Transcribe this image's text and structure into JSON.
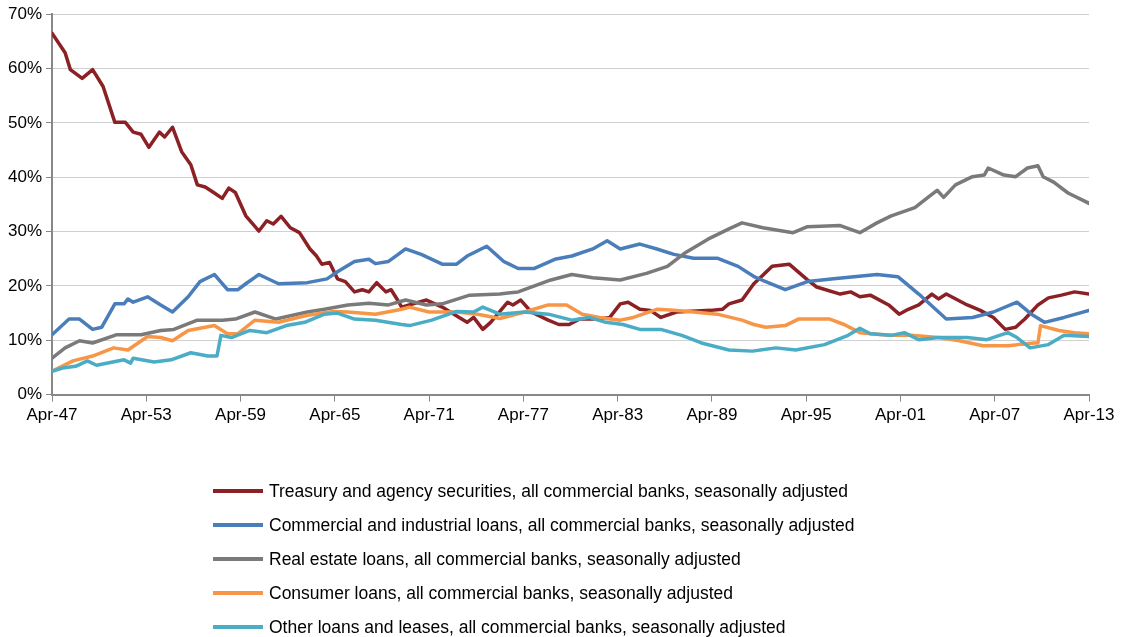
{
  "chart_data": {
    "type": "line",
    "xlim": [
      "1947-04",
      "2013-04"
    ],
    "xticks": [
      {
        "value": "1947-04",
        "label": "Apr-47"
      },
      {
        "value": "1953-04",
        "label": "Apr-53"
      },
      {
        "value": "1959-04",
        "label": "Apr-59"
      },
      {
        "value": "1965-04",
        "label": "Apr-65"
      },
      {
        "value": "1971-04",
        "label": "Apr-71"
      },
      {
        "value": "1977-04",
        "label": "Apr-77"
      },
      {
        "value": "1983-04",
        "label": "Apr-83"
      },
      {
        "value": "1989-04",
        "label": "Apr-89"
      },
      {
        "value": "1995-04",
        "label": "Apr-95"
      },
      {
        "value": "2001-04",
        "label": "Apr-01"
      },
      {
        "value": "2007-04",
        "label": "Apr-07"
      },
      {
        "value": "2013-04",
        "label": "Apr-13"
      }
    ],
    "ylim": [
      0,
      70
    ],
    "yticks": [
      {
        "value": 0,
        "label": "0%"
      },
      {
        "value": 10,
        "label": "10%"
      },
      {
        "value": 20,
        "label": "20%"
      },
      {
        "value": 30,
        "label": "30%"
      },
      {
        "value": 40,
        "label": "40%"
      },
      {
        "value": 50,
        "label": "50%"
      },
      {
        "value": 60,
        "label": "60%"
      },
      {
        "value": 70,
        "label": "70%"
      }
    ],
    "grid": "y",
    "legend": "bottom",
    "line_style": "solid",
    "series": [
      {
        "name": "Treasury and agency securities, all commercial banks, seasonally adjusted",
        "color": "#8b2125",
        "x": [
          "1947-04",
          "1948-02",
          "1948-06",
          "1949-03",
          "1949-11",
          "1950-07",
          "1951-04",
          "1951-12",
          "1952-06",
          "1952-12",
          "1953-06",
          "1954-02",
          "1954-06",
          "1954-12",
          "1955-07",
          "1956-02",
          "1956-07",
          "1957-01",
          "1957-08",
          "1958-02",
          "1958-07",
          "1958-12",
          "1959-08",
          "1960-06",
          "1960-12",
          "1961-05",
          "1961-11",
          "1962-06",
          "1963-01",
          "1963-09",
          "1964-02",
          "1964-06",
          "1964-12",
          "1965-06",
          "1965-12",
          "1966-07",
          "1967-01",
          "1967-06",
          "1967-12",
          "1968-07",
          "1968-11",
          "1969-05",
          "1969-07",
          "1971-02",
          "1972-02",
          "1973-03",
          "1973-09",
          "1974-02",
          "1974-09",
          "1975-03",
          "1976-04",
          "1976-08",
          "1977-02",
          "1977-10",
          "1978-11",
          "1979-07",
          "1980-03",
          "1980-11",
          "1982-02",
          "1982-10",
          "1983-06",
          "1983-12",
          "1984-09",
          "1985-05",
          "1986-01",
          "1987-01",
          "1989-03",
          "1989-12",
          "1990-05",
          "1991-03",
          "1991-12",
          "1993-02",
          "1994-03",
          "1995-05",
          "1995-12",
          "1997-06",
          "1998-02",
          "1998-09",
          "1999-05",
          "2000-07",
          "2001-03",
          "2001-10",
          "2002-06",
          "2003-04",
          "2003-09",
          "2004-03",
          "2005-07",
          "2006-05",
          "2007-03",
          "2007-12",
          "2008-08",
          "2009-03",
          "2010-01",
          "2010-09",
          "2011-07",
          "2012-05",
          "2013-04"
        ],
        "values": [
          66.5,
          62.9,
          59.8,
          58.2,
          59.8,
          56.7,
          50.1,
          50.1,
          48.3,
          47.9,
          45.5,
          48.3,
          47.4,
          49.2,
          44.7,
          42.3,
          38.6,
          38.2,
          37.1,
          36.1,
          38,
          37.2,
          32.9,
          30.1,
          32,
          31.4,
          32.8,
          30.7,
          29.8,
          26.8,
          25.5,
          24,
          24.3,
          21.3,
          20.8,
          18.9,
          19.3,
          18.9,
          20.6,
          18.9,
          19.3,
          17,
          16.1,
          17.4,
          16.1,
          14.2,
          13.3,
          14.2,
          12,
          13.3,
          17,
          16.5,
          17.4,
          15.2,
          13.7,
          12.9,
          12.9,
          13.9,
          13.9,
          14.2,
          16.7,
          17,
          15.7,
          15.5,
          14.2,
          15.2,
          15.5,
          15.7,
          16.7,
          17.4,
          20.4,
          23.6,
          24,
          21.1,
          19.8,
          18.5,
          18.9,
          18,
          18.3,
          16.5,
          14.8,
          15.7,
          16.5,
          18.5,
          17.6,
          18.5,
          16.5,
          15.5,
          14.2,
          12,
          12.4,
          13.9,
          16.5,
          17.8,
          18.3,
          18.9,
          18.5
        ]
      },
      {
        "name": "Commercial and industrial loans, all commercial banks, seasonally adjusted",
        "color": "#4a7ebb",
        "x": [
          "1947-04",
          "1948-05",
          "1949-01",
          "1949-11",
          "1950-06",
          "1951-04",
          "1951-11",
          "1952-02",
          "1952-06",
          "1953-05",
          "1954-03",
          "1954-12",
          "1955-12",
          "1956-09",
          "1957-08",
          "1958-06",
          "1959-02",
          "1959-08",
          "1960-06",
          "1961-09",
          "1963-07",
          "1964-10",
          "1965-06",
          "1966-07",
          "1967-06",
          "1967-11",
          "1968-09",
          "1969-10",
          "1970-10",
          "1972-02",
          "1973-01",
          "1973-09",
          "1974-12",
          "1976-01",
          "1976-12",
          "1977-12",
          "1979-04",
          "1980-05",
          "1981-09",
          "1982-08",
          "1983-06",
          "1984-09",
          "1985-10",
          "1986-11",
          "1988-02",
          "1989-08",
          "1990-12",
          "1992-01",
          "1993-12",
          "1995-05",
          "1997-01",
          "1999-10",
          "2001-02",
          "2002-06",
          "2004-03",
          "2005-11",
          "2007-03",
          "2008-09",
          "2009-08",
          "2010-06",
          "2011-09",
          "2013-04"
        ],
        "values": [
          11,
          13.9,
          13.9,
          12,
          12.4,
          16.7,
          16.7,
          17.6,
          17,
          18,
          16.5,
          15.2,
          18,
          20.8,
          22.1,
          19.3,
          19.3,
          20.4,
          22.1,
          20.4,
          20.6,
          21.3,
          22.6,
          24.5,
          24.9,
          24.1,
          24.5,
          26.8,
          25.8,
          24,
          24,
          25.5,
          27.3,
          24.5,
          23.2,
          23.2,
          24.9,
          25.5,
          26.8,
          28.3,
          26.8,
          27.7,
          26.8,
          25.8,
          25.1,
          25.1,
          23.6,
          21.6,
          19.3,
          20.8,
          21.3,
          22.1,
          21.7,
          18.5,
          13.9,
          14.2,
          15.2,
          17,
          14.8,
          13.3,
          14.2,
          15.5
        ]
      },
      {
        "name": "Real estate loans, all commercial banks, seasonally adjusted",
        "color": "#7a7a7a",
        "x": [
          "1947-04",
          "1948-02",
          "1949-01",
          "1949-11",
          "1951-05",
          "1952-12",
          "1954-03",
          "1955-01",
          "1956-07",
          "1958-02",
          "1958-12",
          "1960-03",
          "1961-07",
          "1963-07",
          "1964-08",
          "1966-02",
          "1967-06",
          "1968-09",
          "1969-10",
          "1971-02",
          "1972-02",
          "1973-11",
          "1975-10",
          "1976-12",
          "1979-01",
          "1980-05",
          "1981-09",
          "1983-06",
          "1985-02",
          "1986-06",
          "1987-07",
          "1989-01",
          "1990-05",
          "1991-03",
          "1992-07",
          "1994-06",
          "1995-05",
          "1997-06",
          "1998-09",
          "1999-10",
          "2000-09",
          "2002-03",
          "2003-01",
          "2003-08",
          "2004-01",
          "2004-10",
          "2005-11",
          "2006-08",
          "2006-11",
          "2007-11",
          "2008-08",
          "2009-05",
          "2010-01",
          "2010-05",
          "2011-01",
          "2011-12",
          "2013-04"
        ],
        "values": [
          6.7,
          8.6,
          9.9,
          9.5,
          11,
          11,
          11.8,
          12,
          13.7,
          13.7,
          13.9,
          15.2,
          13.9,
          15.2,
          15.7,
          16.5,
          16.8,
          16.5,
          17.4,
          16.5,
          16.7,
          18.3,
          18.5,
          18.9,
          21.1,
          22.1,
          21.5,
          21.1,
          22.3,
          23.6,
          26,
          28.6,
          30.5,
          31.6,
          30.7,
          29.8,
          30.9,
          31.1,
          29.8,
          31.6,
          32.9,
          34.4,
          36.3,
          37.6,
          36.3,
          38.6,
          40.1,
          40.4,
          41.7,
          40.4,
          40.1,
          41.7,
          42.1,
          40.1,
          39.1,
          37.1,
          35.2
        ]
      },
      {
        "name": "Consumer loans, all commercial banks, seasonally adjusted",
        "color": "#f79646",
        "x": [
          "1947-04",
          "1948-08",
          "1949-11",
          "1951-03",
          "1952-02",
          "1953-05",
          "1954-03",
          "1954-12",
          "1955-12",
          "1957-08",
          "1958-06",
          "1959-02",
          "1960-03",
          "1961-09",
          "1963-07",
          "1965-03",
          "1966-02",
          "1967-11",
          "1969-07",
          "1970-01",
          "1971-04",
          "1973-01",
          "1974-05",
          "1975-10",
          "1977-05",
          "1978-11",
          "1980-01",
          "1981-01",
          "1982-02",
          "1983-06",
          "1984-04",
          "1985-10",
          "1986-11",
          "1988-02",
          "1989-08",
          "1991-03",
          "1991-12",
          "1992-09",
          "1993-12",
          "1994-10",
          "1996-10",
          "1997-09",
          "1998-09",
          "2000-07",
          "2001-12",
          "2003-09",
          "2005-01",
          "2006-07",
          "2008-02",
          "2009-10",
          "2010-01",
          "2010-03",
          "2011-05",
          "2012-05",
          "2013-04"
        ],
        "values": [
          4.3,
          6.2,
          7.1,
          8.6,
          8.2,
          10.7,
          10.5,
          9.9,
          11.8,
          12.7,
          11.2,
          11.2,
          13.7,
          13.3,
          14.6,
          15.3,
          15.2,
          14.8,
          15.7,
          16.1,
          15.2,
          15.2,
          14.8,
          14,
          15.2,
          16.5,
          16.5,
          14.8,
          14.2,
          13.7,
          14.2,
          15.7,
          15.5,
          15.2,
          14.8,
          13.7,
          12.9,
          12.4,
          12.7,
          13.9,
          13.9,
          12.9,
          11.4,
          10.9,
          10.9,
          10.5,
          9.9,
          9,
          9,
          9.5,
          9.5,
          12.7,
          11.8,
          11.4,
          11.2
        ]
      },
      {
        "name": "Other loans and leases, all commercial banks, seasonally adjusted",
        "color": "#4bacc6",
        "x": [
          "1947-04",
          "1947-12",
          "1948-10",
          "1949-07",
          "1950-02",
          "1951-11",
          "1952-04",
          "1952-06",
          "1953-10",
          "1954-11",
          "1956-02",
          "1957-03",
          "1957-10",
          "1958-01",
          "1958-09",
          "1959-11",
          "1960-12",
          "1962-03",
          "1963-05",
          "1964-08",
          "1965-06",
          "1966-07",
          "1967-11",
          "1969-07",
          "1970-01",
          "1971-06",
          "1973-01",
          "1974-02",
          "1974-09",
          "1975-10",
          "1977-05",
          "1978-11",
          "1980-05",
          "1981-06",
          "1982-07",
          "1983-08",
          "1984-09",
          "1986-01",
          "1987-05",
          "1988-08",
          "1990-05",
          "1991-11",
          "1993-05",
          "1994-08",
          "1996-06",
          "1997-12",
          "1998-09",
          "1999-05",
          "2000-09",
          "2001-07",
          "2002-06",
          "2003-09",
          "2005-07",
          "2006-10",
          "2008-02",
          "2008-09",
          "2009-07",
          "2010-09",
          "2011-09",
          "2013-04"
        ],
        "values": [
          4.3,
          4.9,
          5.2,
          6.2,
          5.4,
          6.4,
          5.8,
          6.7,
          6,
          6.4,
          7.7,
          7.1,
          7.1,
          10.9,
          10.5,
          11.8,
          11.4,
          12.7,
          13.3,
          14.8,
          15,
          13.9,
          13.7,
          12.9,
          12.7,
          13.7,
          15.3,
          15.2,
          16.1,
          14.8,
          15.2,
          14.8,
          13.7,
          14.2,
          13.3,
          12.9,
          12,
          12,
          10.9,
          9.5,
          8.2,
          8,
          8.6,
          8.2,
          9.2,
          10.9,
          12.2,
          11.2,
          10.9,
          11.4,
          10.1,
          10.5,
          10.5,
          10.1,
          11.4,
          10.5,
          8.6,
          9.2,
          10.9,
          10.7
        ]
      }
    ]
  }
}
